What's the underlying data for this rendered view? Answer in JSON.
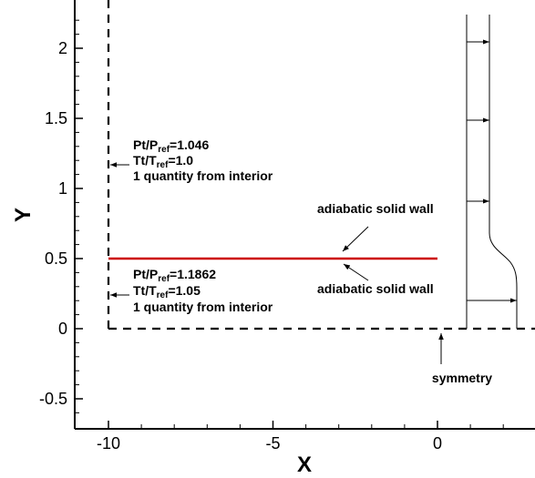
{
  "axes": {
    "xlabel": "X",
    "ylabel": "Y",
    "xlim": [
      -11,
      2.5
    ],
    "ylim": [
      -0.72,
      2.35
    ],
    "x_ticks": [
      {
        "value": -10,
        "label": "-10"
      },
      {
        "value": -5,
        "label": "-5"
      },
      {
        "value": 0,
        "label": "0"
      }
    ],
    "y_ticks": [
      {
        "value": -0.5,
        "label": "-0.5"
      },
      {
        "value": 0,
        "label": "0"
      },
      {
        "value": 0.5,
        "label": "0.5"
      },
      {
        "value": 1,
        "label": "1"
      },
      {
        "value": 1.5,
        "label": "1.5"
      },
      {
        "value": 2,
        "label": "2"
      }
    ]
  },
  "inlet_upper": {
    "pt_main": "Pt/P",
    "pt_sub": "ref",
    "pt_val": "=1.046",
    "tt_main": "Tt/T",
    "tt_sub": "ref",
    "tt_val": "=1.0",
    "line3": "1 quantity from interior"
  },
  "inlet_lower": {
    "pt_main": "Pt/P",
    "pt_sub": "ref",
    "pt_val": "=1.1862",
    "tt_main": "Tt/T",
    "tt_sub": "ref",
    "tt_val": "=1.05",
    "line3": "1 quantity from interior"
  },
  "wall_top_label": "adiabatic solid wall",
  "wall_bottom_label": "adiabatic solid wall",
  "symmetry_label": "symmetry",
  "wall": {
    "x_start": -10,
    "x_end": 0,
    "y": 0.5,
    "color": "#cc0000"
  }
}
